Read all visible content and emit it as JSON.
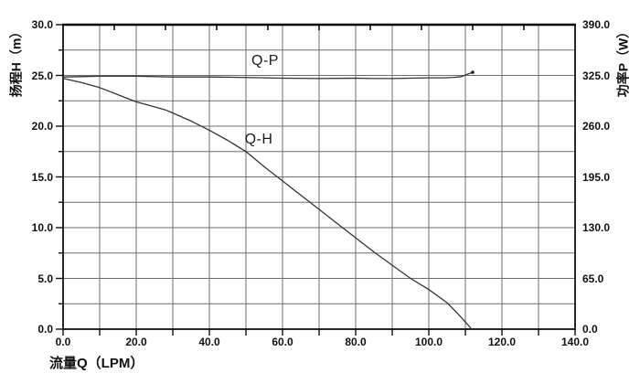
{
  "chart_data": {
    "type": "line",
    "title": "",
    "grid": "on",
    "legend_position": "inline-labels",
    "x_axis": {
      "label": "流量Q（LPM）",
      "min": 0,
      "max": 140,
      "major_tick_step": 20,
      "minor_grid_step": 10,
      "tick_labels": [
        "0.0",
        "20.0",
        "40.0",
        "60.0",
        "80.0",
        "100.0",
        "120.0",
        "140.0"
      ]
    },
    "y_left_axis": {
      "label": "扬程H（m）",
      "min": 0,
      "max": 30,
      "major_tick_step": 5,
      "minor_grid_step": 2.5,
      "tick_labels": [
        "30.0",
        "25.0",
        "20.0",
        "15.0",
        "10.0",
        "5.0",
        "0.0"
      ]
    },
    "y_right_axis": {
      "label": "功率P（W）",
      "min": 0,
      "max": 390,
      "major_tick_step": 65,
      "tick_labels": [
        "390.0",
        "325.0",
        "260.0",
        "195.0",
        "130.0",
        "65.0",
        "0.0"
      ]
    },
    "series": [
      {
        "name": "Q-H",
        "axis": "left",
        "units": [
          "LPM",
          "m"
        ],
        "points": [
          [
            0,
            24.7
          ],
          [
            5,
            24.3
          ],
          [
            10,
            23.8
          ],
          [
            15,
            23.1
          ],
          [
            20,
            22.4
          ],
          [
            25,
            21.9
          ],
          [
            28,
            21.6
          ],
          [
            30,
            21.3
          ],
          [
            35,
            20.5
          ],
          [
            40,
            19.6
          ],
          [
            45,
            18.6
          ],
          [
            50,
            17.5
          ],
          [
            55,
            16.0
          ],
          [
            60,
            14.6
          ],
          [
            65,
            13.2
          ],
          [
            70,
            11.8
          ],
          [
            75,
            10.4
          ],
          [
            80,
            9.0
          ],
          [
            85,
            7.6
          ],
          [
            90,
            6.3
          ],
          [
            95,
            5.0
          ],
          [
            100,
            3.9
          ],
          [
            105,
            2.6
          ],
          [
            108,
            1.5
          ],
          [
            110,
            0.7
          ],
          [
            111.5,
            0.1
          ]
        ]
      },
      {
        "name": "Q-P",
        "axis": "right",
        "units": [
          "LPM",
          "W"
        ],
        "points": [
          [
            0,
            323
          ],
          [
            5,
            323.5
          ],
          [
            10,
            324
          ],
          [
            20,
            324
          ],
          [
            30,
            323
          ],
          [
            40,
            323
          ],
          [
            48,
            322.5
          ],
          [
            55,
            322
          ],
          [
            60,
            321.5
          ],
          [
            70,
            321
          ],
          [
            80,
            321.5
          ],
          [
            85,
            321
          ],
          [
            90,
            321
          ],
          [
            95,
            321.5
          ],
          [
            100,
            322
          ],
          [
            104,
            322
          ],
          [
            107,
            322.5
          ],
          [
            109,
            323.5
          ],
          [
            110.5,
            326.5
          ],
          [
            112,
            329
          ]
        ]
      }
    ]
  }
}
